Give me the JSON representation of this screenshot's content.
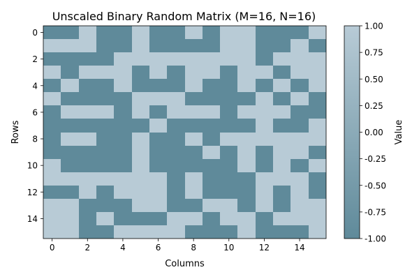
{
  "chart_data": {
    "type": "heatmap",
    "title": "Unscaled Binary Random Matrix (M=16, N=16)",
    "xlabel": "Columns",
    "ylabel": "Rows",
    "colorbar_label": "Value",
    "x_ticks": [
      0,
      2,
      4,
      6,
      8,
      10,
      12,
      14
    ],
    "y_ticks": [
      0,
      2,
      4,
      6,
      8,
      10,
      12,
      14
    ],
    "colorbar_ticks": [
      "1.00",
      "0.75",
      "0.50",
      "0.25",
      "0.00",
      "-0.25",
      "-0.50",
      "-0.75",
      "-1.00"
    ],
    "value_range": [
      -1,
      1
    ],
    "colors": {
      "low": "#5f8a9a",
      "high": "#b8cbd6"
    },
    "matrix": [
      [
        -1,
        -1,
        1,
        -1,
        -1,
        1,
        -1,
        -1,
        1,
        -1,
        1,
        1,
        -1,
        -1,
        -1,
        1
      ],
      [
        1,
        1,
        1,
        -1,
        -1,
        1,
        -1,
        -1,
        -1,
        -1,
        1,
        1,
        -1,
        -1,
        1,
        -1
      ],
      [
        -1,
        -1,
        -1,
        -1,
        1,
        1,
        1,
        1,
        1,
        1,
        1,
        1,
        -1,
        1,
        1,
        1
      ],
      [
        1,
        -1,
        1,
        1,
        1,
        -1,
        1,
        -1,
        1,
        1,
        -1,
        1,
        1,
        -1,
        1,
        1
      ],
      [
        -1,
        1,
        -1,
        -1,
        1,
        -1,
        -1,
        -1,
        1,
        -1,
        -1,
        1,
        -1,
        1,
        -1,
        1
      ],
      [
        1,
        -1,
        -1,
        -1,
        -1,
        1,
        1,
        1,
        -1,
        -1,
        -1,
        -1,
        1,
        -1,
        1,
        -1
      ],
      [
        -1,
        1,
        1,
        1,
        -1,
        1,
        -1,
        1,
        1,
        1,
        -1,
        1,
        1,
        1,
        -1,
        -1
      ],
      [
        -1,
        -1,
        -1,
        -1,
        -1,
        -1,
        1,
        -1,
        -1,
        -1,
        -1,
        -1,
        1,
        -1,
        -1,
        1
      ],
      [
        -1,
        1,
        1,
        -1,
        -1,
        1,
        -1,
        -1,
        1,
        -1,
        1,
        1,
        1,
        1,
        1,
        1
      ],
      [
        -1,
        -1,
        -1,
        -1,
        -1,
        1,
        -1,
        -1,
        -1,
        1,
        -1,
        1,
        -1,
        1,
        1,
        -1
      ],
      [
        1,
        -1,
        -1,
        -1,
        -1,
        1,
        -1,
        -1,
        -1,
        -1,
        -1,
        1,
        -1,
        1,
        -1,
        1
      ],
      [
        1,
        1,
        1,
        1,
        1,
        1,
        1,
        -1,
        1,
        -1,
        -1,
        -1,
        1,
        1,
        1,
        -1
      ],
      [
        -1,
        -1,
        1,
        -1,
        1,
        1,
        1,
        -1,
        1,
        -1,
        -1,
        -1,
        1,
        -1,
        1,
        -1
      ],
      [
        1,
        1,
        -1,
        -1,
        -1,
        1,
        1,
        -1,
        -1,
        1,
        1,
        -1,
        1,
        -1,
        1,
        1
      ],
      [
        1,
        1,
        -1,
        1,
        -1,
        -1,
        -1,
        1,
        1,
        -1,
        1,
        1,
        -1,
        1,
        1,
        1
      ],
      [
        1,
        1,
        -1,
        -1,
        1,
        1,
        1,
        1,
        -1,
        -1,
        -1,
        1,
        -1,
        -1,
        -1,
        1
      ]
    ]
  }
}
